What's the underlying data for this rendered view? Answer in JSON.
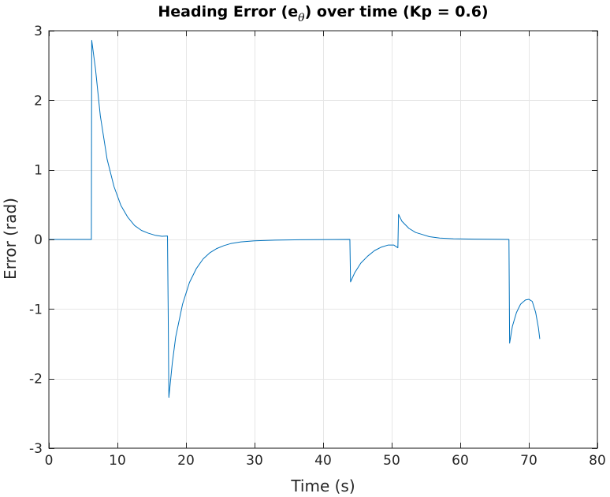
{
  "chart_data": {
    "type": "line",
    "title": {
      "prefix": "Heading Error (e",
      "subscript": "θ",
      "suffix": ") over time (Kp = 0.6)"
    },
    "xlabel": "Time (s)",
    "ylabel": "Error (rad)",
    "xlim": [
      0,
      80
    ],
    "ylim": [
      -3,
      3
    ],
    "xticks": [
      0,
      10,
      20,
      30,
      40,
      50,
      60,
      70,
      80
    ],
    "yticks": [
      -3,
      -2,
      -1,
      0,
      1,
      2,
      3
    ],
    "xtick_labels": [
      "0",
      "10",
      "20",
      "30",
      "40",
      "50",
      "60",
      "70",
      "80"
    ],
    "ytick_labels": [
      "-3",
      "-2",
      "-1",
      "0",
      "1",
      "2",
      "3"
    ],
    "grid": true,
    "box": true,
    "series": [
      {
        "color": "#0072BD",
        "points": [
          [
            0,
            0
          ],
          [
            6.2,
            0
          ],
          [
            6.25,
            2.86
          ],
          [
            6.8,
            2.45
          ],
          [
            7.5,
            1.78
          ],
          [
            8.5,
            1.15
          ],
          [
            9.5,
            0.76
          ],
          [
            10.5,
            0.49
          ],
          [
            11.5,
            0.32
          ],
          [
            12.5,
            0.2
          ],
          [
            13.5,
            0.13
          ],
          [
            14.5,
            0.09
          ],
          [
            15.5,
            0.06
          ],
          [
            16.5,
            0.045
          ],
          [
            17.3,
            0.05
          ],
          [
            17.4,
            -1.0
          ],
          [
            17.5,
            -2.27
          ],
          [
            18.0,
            -1.78
          ],
          [
            18.5,
            -1.4
          ],
          [
            19.5,
            -0.93
          ],
          [
            20.5,
            -0.62
          ],
          [
            21.5,
            -0.42
          ],
          [
            22.5,
            -0.28
          ],
          [
            23.5,
            -0.19
          ],
          [
            24.5,
            -0.13
          ],
          [
            25.5,
            -0.09
          ],
          [
            26.5,
            -0.06
          ],
          [
            28,
            -0.035
          ],
          [
            30,
            -0.02
          ],
          [
            33,
            -0.01
          ],
          [
            37,
            -0.004
          ],
          [
            43.9,
            0
          ],
          [
            44.0,
            -0.61
          ],
          [
            44.6,
            -0.48
          ],
          [
            45.5,
            -0.34
          ],
          [
            46.5,
            -0.24
          ],
          [
            47.5,
            -0.16
          ],
          [
            48.5,
            -0.11
          ],
          [
            49.5,
            -0.08
          ],
          [
            50.3,
            -0.08
          ],
          [
            50.9,
            -0.12
          ],
          [
            51.0,
            0.36
          ],
          [
            51.5,
            0.26
          ],
          [
            52.5,
            0.16
          ],
          [
            53.5,
            0.1
          ],
          [
            54.5,
            0.07
          ],
          [
            55.5,
            0.04
          ],
          [
            57,
            0.02
          ],
          [
            59,
            0.01
          ],
          [
            62,
            0.004
          ],
          [
            67.1,
            0
          ],
          [
            67.2,
            -1.49
          ],
          [
            67.6,
            -1.25
          ],
          [
            68.2,
            -1.05
          ],
          [
            68.8,
            -0.93
          ],
          [
            69.5,
            -0.87
          ],
          [
            70.0,
            -0.86
          ],
          [
            70.5,
            -0.89
          ],
          [
            71.0,
            -1.05
          ],
          [
            71.4,
            -1.27
          ],
          [
            71.6,
            -1.43
          ]
        ]
      }
    ]
  }
}
